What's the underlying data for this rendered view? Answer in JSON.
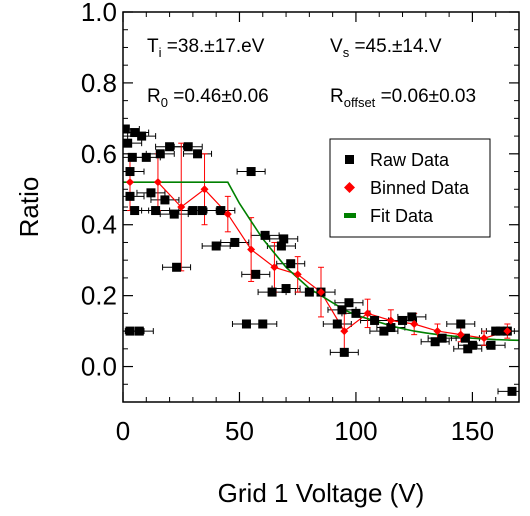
{
  "chart_data": {
    "type": "scatter",
    "xlabel": "Grid 1 Voltage (V)",
    "ylabel": "Ratio",
    "xlim": [
      0,
      170
    ],
    "ylim": [
      -0.1,
      1.0
    ],
    "x_ticks": [
      0,
      50,
      100,
      150
    ],
    "x_tick_labels": [
      "0",
      "50",
      "100",
      "150"
    ],
    "y_ticks": [
      0.0,
      0.2,
      0.4,
      0.6,
      0.8,
      1.0
    ],
    "y_tick_labels": [
      "0.0",
      "0.2",
      "0.4",
      "0.6",
      "0.8",
      "1.0"
    ],
    "grid": false,
    "legend_position": "upper-right",
    "annotations": {
      "ti_main": "T",
      "ti_sub": "i",
      "ti_value": " =38.±17.eV",
      "vs_main": "V",
      "vs_sub": "s",
      "vs_value": " =45.±14.V",
      "r0_main": "R",
      "r0_sub": "0",
      "r0_value": " =0.46±0.06",
      "roff_main": "R",
      "roff_sub": "offset",
      "roff_value": " =0.06±0.03"
    },
    "series": [
      {
        "name": "Raw Data",
        "color": "#000000",
        "marker": "square",
        "points": [
          [
            1,
            0.67
          ],
          [
            2,
            0.63
          ],
          [
            3,
            0.55
          ],
          [
            3,
            0.48
          ],
          [
            3,
            0.1
          ],
          [
            4,
            0.59
          ],
          [
            5,
            0.66
          ],
          [
            5,
            0.44
          ],
          [
            7,
            0.1
          ],
          [
            8,
            0.65
          ],
          [
            10,
            0.59
          ],
          [
            12,
            0.49
          ],
          [
            14,
            0.44
          ],
          [
            16,
            0.6
          ],
          [
            18,
            0.47
          ],
          [
            20,
            0.62
          ],
          [
            22,
            0.43
          ],
          [
            23,
            0.28
          ],
          [
            28,
            0.62
          ],
          [
            30,
            0.44
          ],
          [
            32,
            0.6
          ],
          [
            34,
            0.44
          ],
          [
            40,
            0.34
          ],
          [
            42,
            0.44
          ],
          [
            48,
            0.35
          ],
          [
            53,
            0.12
          ],
          [
            55,
            0.55
          ],
          [
            57,
            0.26
          ],
          [
            60,
            0.12
          ],
          [
            61,
            0.37
          ],
          [
            64,
            0.21
          ],
          [
            68,
            0.34
          ],
          [
            69,
            0.36
          ],
          [
            70,
            0.22
          ],
          [
            72,
            0.29
          ],
          [
            80,
            0.21
          ],
          [
            85,
            0.21
          ],
          [
            92,
            0.12
          ],
          [
            94,
            0.16
          ],
          [
            95,
            0.04
          ],
          [
            97,
            0.18
          ],
          [
            100,
            0.15
          ],
          [
            108,
            0.13
          ],
          [
            112,
            0.1
          ],
          [
            115,
            0.11
          ],
          [
            120,
            0.13
          ],
          [
            124,
            0.14
          ],
          [
            134,
            0.07
          ],
          [
            137,
            0.08
          ],
          [
            145,
            0.12
          ],
          [
            147,
            0.08
          ],
          [
            148,
            0.05
          ],
          [
            150,
            0.06
          ],
          [
            158,
            0.06
          ],
          [
            160,
            0.1
          ],
          [
            162,
            0.1
          ],
          [
            165,
            0.1
          ],
          [
            167,
            -0.07
          ]
        ]
      },
      {
        "name": "Binned Data",
        "color": "#ff0000",
        "marker": "diamond",
        "points": [
          [
            3,
            0.52,
            0.08
          ],
          [
            15,
            0.52,
            0.08
          ],
          [
            25,
            0.45,
            0.18
          ],
          [
            35,
            0.5,
            0.1
          ],
          [
            45,
            0.43,
            0.05
          ],
          [
            55,
            0.33,
            0.09
          ],
          [
            65,
            0.28,
            0.07
          ],
          [
            75,
            0.26,
            0.05
          ],
          [
            85,
            0.21,
            0.07
          ],
          [
            95,
            0.1,
            0.05
          ],
          [
            105,
            0.15,
            0.04
          ],
          [
            115,
            0.13,
            0.03
          ],
          [
            125,
            0.12,
            0.03
          ],
          [
            135,
            0.1,
            0.02
          ],
          [
            145,
            0.09,
            0.02
          ],
          [
            155,
            0.08,
            0.02
          ],
          [
            165,
            0.1,
            0.02
          ]
        ]
      },
      {
        "name": "Fit Data",
        "color": "#008000",
        "marker": "line",
        "points": [
          [
            0,
            0.52
          ],
          [
            45,
            0.52
          ],
          [
            50,
            0.46
          ],
          [
            55,
            0.41
          ],
          [
            60,
            0.36
          ],
          [
            65,
            0.32
          ],
          [
            70,
            0.28
          ],
          [
            75,
            0.25
          ],
          [
            80,
            0.22
          ],
          [
            85,
            0.2
          ],
          [
            90,
            0.18
          ],
          [
            95,
            0.16
          ],
          [
            100,
            0.145
          ],
          [
            105,
            0.135
          ],
          [
            110,
            0.125
          ],
          [
            115,
            0.115
          ],
          [
            120,
            0.107
          ],
          [
            125,
            0.1
          ],
          [
            130,
            0.095
          ],
          [
            135,
            0.09
          ],
          [
            140,
            0.087
          ],
          [
            145,
            0.083
          ],
          [
            150,
            0.08
          ],
          [
            155,
            0.078
          ],
          [
            160,
            0.076
          ],
          [
            165,
            0.075
          ],
          [
            170,
            0.074
          ]
        ]
      }
    ]
  }
}
